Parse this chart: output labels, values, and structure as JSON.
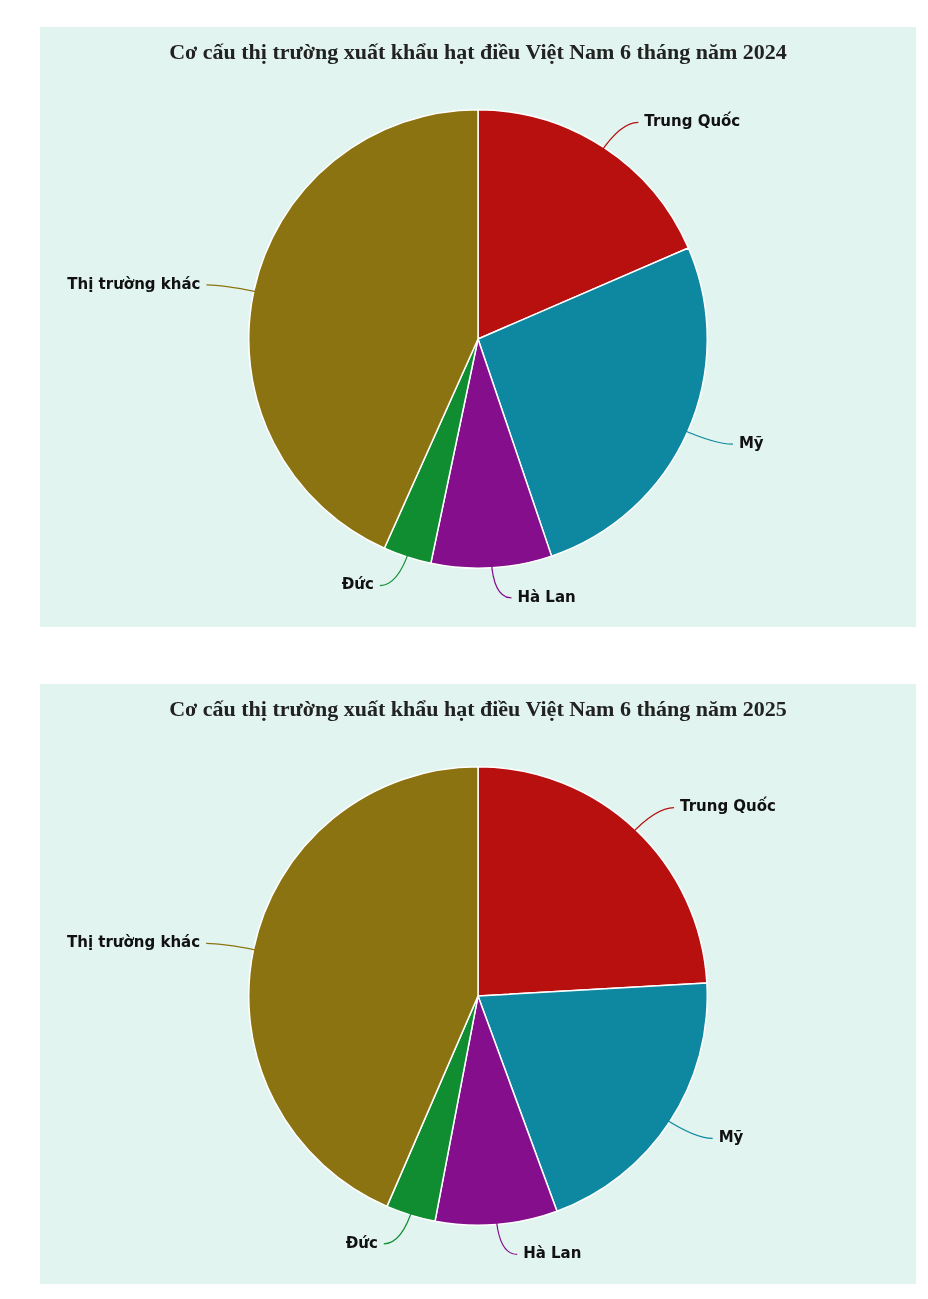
{
  "chart_data": [
    {
      "type": "pie",
      "title": "Cơ cấu thị trường xuất khẩu hạt điều Việt Nam 6 tháng năm 2024",
      "categories": [
        "Trung Quốc",
        "Mỹ",
        "Hà Lan",
        "Đức",
        "Thị trường khác"
      ],
      "values": [
        18.5,
        26.3,
        8.5,
        3.4,
        43.3
      ],
      "colors": [
        "#b80f0f",
        "#0e88a0",
        "#850e8c",
        "#0f8d30",
        "#8c7311"
      ]
    },
    {
      "type": "pie",
      "title": "Cơ cấu thị trường xuất khẩu hạt điều Việt Nam 6 tháng năm 2025",
      "categories": [
        "Trung Quốc",
        "Mỹ",
        "Hà Lan",
        "Đức",
        "Thị trường khác"
      ],
      "values": [
        24.1,
        20.3,
        8.6,
        3.5,
        43.5
      ],
      "colors": [
        "#b80f0f",
        "#0e88a0",
        "#850e8c",
        "#0f8d30",
        "#8c7311"
      ]
    }
  ]
}
